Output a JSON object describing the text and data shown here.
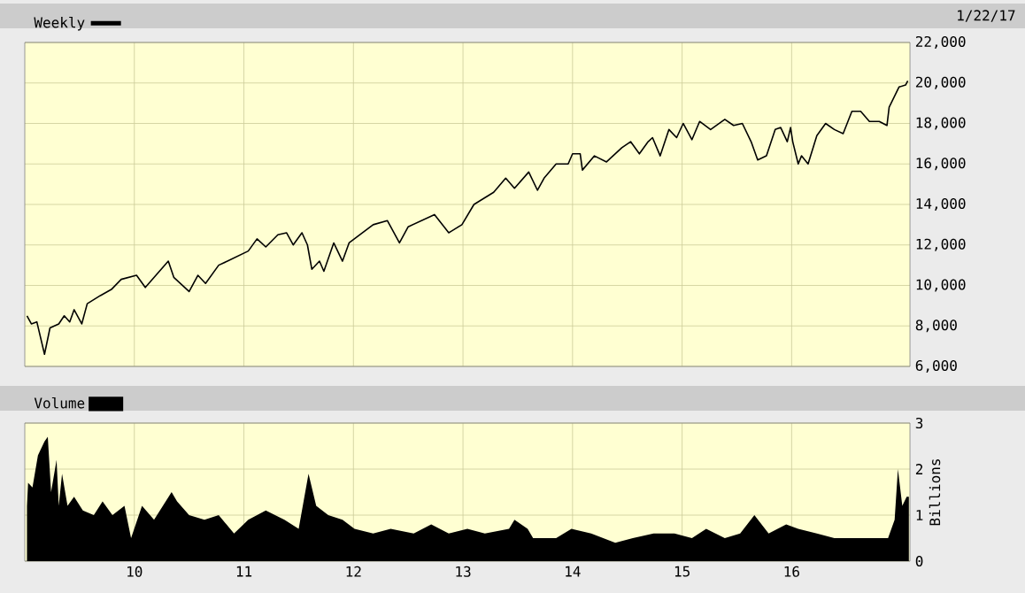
{
  "chart_data": [
    {
      "type": "line",
      "legend": "top left",
      "grid": true,
      "tick_labels": "y",
      "annotations": [
        "1/22/17"
      ],
      "xlim": [
        2009.0,
        2017.08
      ],
      "xticks": [
        {
          "value": 2010,
          "label": null
        },
        {
          "value": 2011,
          "label": null
        },
        {
          "value": 2012,
          "label": null
        },
        {
          "value": 2013,
          "label": null
        },
        {
          "value": 2014,
          "label": null
        },
        {
          "value": 2015,
          "label": null
        },
        {
          "value": 2016,
          "label": null
        }
      ],
      "ylim": [
        6000,
        22000
      ],
      "yticks": [
        {
          "value": 6000,
          "label": "6,000"
        },
        {
          "value": 8000,
          "label": "8,000"
        },
        {
          "value": 10000,
          "label": "10,000"
        },
        {
          "value": 12000,
          "label": "12,000"
        },
        {
          "value": 14000,
          "label": "14,000"
        },
        {
          "value": 16000,
          "label": "16,000"
        },
        {
          "value": 18000,
          "label": "18,000"
        },
        {
          "value": 20000,
          "label": "20,000"
        },
        {
          "value": 22000,
          "label": "22,000"
        }
      ],
      "series": [
        {
          "name": "Weekly",
          "color": "#000000",
          "x": [
            2009.02,
            2009.06,
            2009.11,
            2009.18,
            2009.23,
            2009.31,
            2009.36,
            2009.41,
            2009.45,
            2009.52,
            2009.57,
            2009.69,
            2009.79,
            2009.88,
            2010.02,
            2010.1,
            2010.31,
            2010.36,
            2010.5,
            2010.58,
            2010.65,
            2010.77,
            2010.85,
            2011.04,
            2011.12,
            2011.2,
            2011.31,
            2011.39,
            2011.45,
            2011.53,
            2011.58,
            2011.62,
            2011.69,
            2011.73,
            2011.82,
            2011.9,
            2011.96,
            2012.18,
            2012.31,
            2012.42,
            2012.5,
            2012.74,
            2012.87,
            2012.99,
            2013.1,
            2013.28,
            2013.39,
            2013.47,
            2013.6,
            2013.68,
            2013.74,
            2013.85,
            2013.96,
            2014.0,
            2014.07,
            2014.09,
            2014.2,
            2014.31,
            2014.45,
            2014.53,
            2014.61,
            2014.69,
            2014.73,
            2014.8,
            2014.88,
            2014.95,
            2015.01,
            2015.09,
            2015.16,
            2015.26,
            2015.39,
            2015.47,
            2015.55,
            2015.63,
            2015.69,
            2015.77,
            2015.85,
            2015.9,
            2015.96,
            2015.99,
            2016.01,
            2016.06,
            2016.09,
            2016.15,
            2016.23,
            2016.31,
            2016.39,
            2016.47,
            2016.55,
            2016.63,
            2016.71,
            2016.8,
            2016.87,
            2016.89,
            2016.98,
            2017.04,
            2017.06
          ],
          "values": [
            8500,
            8100,
            8200,
            6600,
            7900,
            8100,
            8500,
            8200,
            8800,
            8100,
            9100,
            9500,
            9800,
            10300,
            10500,
            9900,
            11200,
            10400,
            9700,
            10500,
            10100,
            11000,
            11200,
            11700,
            12300,
            11900,
            12500,
            12600,
            12000,
            12600,
            12000,
            10800,
            11200,
            10700,
            12100,
            11200,
            12100,
            13000,
            13200,
            12100,
            12900,
            13500,
            12600,
            13000,
            14000,
            14600,
            15300,
            14800,
            15600,
            14700,
            15300,
            16000,
            16000,
            16500,
            16500,
            15700,
            16400,
            16100,
            16800,
            17100,
            16500,
            17100,
            17300,
            16400,
            17700,
            17300,
            18000,
            17200,
            18100,
            17700,
            18200,
            17900,
            18000,
            17100,
            16200,
            16400,
            17700,
            17800,
            17100,
            17800,
            17100,
            16000,
            16400,
            16000,
            17400,
            18000,
            17700,
            17500,
            18600,
            18600,
            18100,
            18100,
            17900,
            18800,
            19800,
            19900,
            20100
          ]
        }
      ]
    },
    {
      "type": "area",
      "legend": "top left",
      "grid": true,
      "ylabel": "Billions",
      "xlim": [
        2009.0,
        2017.08
      ],
      "xticks": [
        {
          "value": 2010,
          "label": "10"
        },
        {
          "value": 2011,
          "label": "11"
        },
        {
          "value": 2012,
          "label": "12"
        },
        {
          "value": 2013,
          "label": "13"
        },
        {
          "value": 2014,
          "label": "14"
        },
        {
          "value": 2015,
          "label": "15"
        },
        {
          "value": 2016,
          "label": "16"
        }
      ],
      "ylim": [
        0,
        3
      ],
      "yticks": [
        0,
        1,
        2,
        3
      ],
      "series": [
        {
          "name": "Volume",
          "color": "#000000",
          "x": [
            2009.02,
            2009.03,
            2009.07,
            2009.12,
            2009.18,
            2009.21,
            2009.24,
            2009.29,
            2009.31,
            2009.34,
            2009.39,
            2009.45,
            2009.53,
            2009.63,
            2009.71,
            2009.8,
            2009.91,
            2009.97,
            2010.07,
            2010.18,
            2010.34,
            2010.39,
            2010.5,
            2010.64,
            2010.77,
            2010.91,
            2011.04,
            2011.2,
            2011.37,
            2011.5,
            2011.56,
            2011.59,
            2011.66,
            2011.77,
            2011.9,
            2012.01,
            2012.18,
            2012.34,
            2012.55,
            2012.71,
            2012.87,
            2013.04,
            2013.2,
            2013.42,
            2013.47,
            2013.59,
            2013.64,
            2013.85,
            2013.99,
            2014.17,
            2014.39,
            2014.55,
            2014.74,
            2014.93,
            2015.09,
            2015.22,
            2015.39,
            2015.53,
            2015.66,
            2015.79,
            2015.95,
            2016.06,
            2016.23,
            2016.39,
            2016.55,
            2016.71,
            2016.88,
            2016.94,
            2016.97,
            2017.01,
            2017.05,
            2017.07
          ],
          "values": [
            1.2,
            1.7,
            1.6,
            2.3,
            2.6,
            2.7,
            1.5,
            2.2,
            1.2,
            1.9,
            1.2,
            1.4,
            1.1,
            1.0,
            1.3,
            1.0,
            1.2,
            0.5,
            1.2,
            0.9,
            1.5,
            1.3,
            1.0,
            0.9,
            1.0,
            0.6,
            0.9,
            1.1,
            0.9,
            0.7,
            1.5,
            1.9,
            1.2,
            1.0,
            0.9,
            0.7,
            0.6,
            0.7,
            0.6,
            0.8,
            0.6,
            0.7,
            0.6,
            0.7,
            0.9,
            0.7,
            0.5,
            0.5,
            0.7,
            0.6,
            0.4,
            0.5,
            0.6,
            0.6,
            0.5,
            0.7,
            0.5,
            0.6,
            1.0,
            0.6,
            0.8,
            0.7,
            0.6,
            0.5,
            0.5,
            0.5,
            0.5,
            0.9,
            2.0,
            1.2,
            1.4,
            1.4
          ]
        }
      ]
    }
  ]
}
